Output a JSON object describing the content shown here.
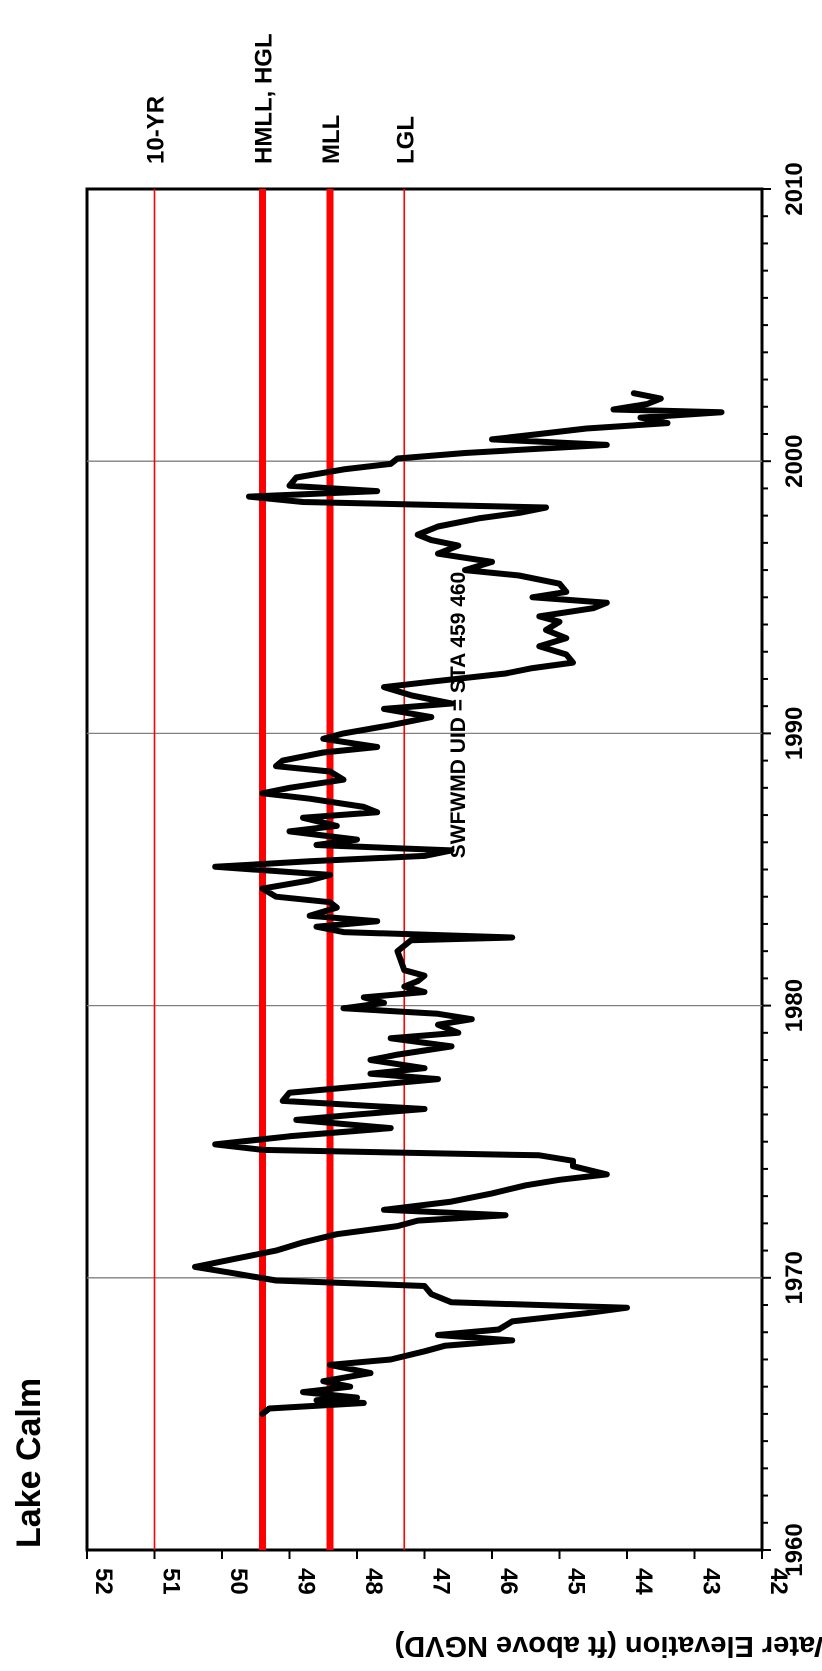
{
  "chart_data": {
    "type": "line",
    "title": "Lake Calm",
    "subtitle": "SWFWMD UID = STA 459 460",
    "xlabel": "",
    "ylabel": "Water Elevation (ft above NGVD)",
    "xlim": [
      1960,
      2010
    ],
    "ylim": [
      42,
      52
    ],
    "x_ticks": [
      1960,
      1970,
      1980,
      1990,
      2000,
      2010
    ],
    "y_ticks": [
      42,
      43,
      44,
      45,
      46,
      47,
      48,
      49,
      50,
      51,
      52
    ],
    "x_gridlines": [
      1970,
      1980,
      1990,
      2000
    ],
    "orientation": "rotated 90 degrees counter-clockwise",
    "reference_lines": [
      {
        "label": "10-YR",
        "value": 51.0,
        "color": "#ff0000",
        "weight": "thin"
      },
      {
        "label": "HMLL, HGL",
        "value": 49.4,
        "color": "#ff0000",
        "weight": "thick"
      },
      {
        "label": "MLL",
        "value": 48.4,
        "color": "#ff0000",
        "weight": "thick"
      },
      {
        "label": "LGL",
        "value": 47.3,
        "color": "#ff0000",
        "weight": "thin"
      }
    ],
    "series": [
      {
        "color": "#000000",
        "points": [
          [
            1965.0,
            49.4
          ],
          [
            1965.2,
            49.3
          ],
          [
            1965.4,
            47.9
          ],
          [
            1965.5,
            48.6
          ],
          [
            1965.6,
            48.0
          ],
          [
            1965.8,
            48.8
          ],
          [
            1966.0,
            48.1
          ],
          [
            1966.2,
            48.5
          ],
          [
            1966.5,
            47.8
          ],
          [
            1966.8,
            48.4
          ],
          [
            1967.0,
            47.5
          ],
          [
            1967.3,
            47.0
          ],
          [
            1967.5,
            46.7
          ],
          [
            1967.7,
            45.7
          ],
          [
            1967.9,
            46.8
          ],
          [
            1968.1,
            45.9
          ],
          [
            1968.4,
            45.7
          ],
          [
            1968.7,
            44.6
          ],
          [
            1968.9,
            44.0
          ],
          [
            1969.1,
            46.6
          ],
          [
            1969.4,
            46.9
          ],
          [
            1969.7,
            47.0
          ],
          [
            1969.9,
            49.2
          ],
          [
            1970.2,
            49.9
          ],
          [
            1970.4,
            50.4
          ],
          [
            1970.7,
            49.8
          ],
          [
            1971.0,
            49.2
          ],
          [
            1971.3,
            48.8
          ],
          [
            1971.6,
            48.3
          ],
          [
            1971.9,
            47.4
          ],
          [
            1972.1,
            47.1
          ],
          [
            1972.3,
            45.8
          ],
          [
            1972.5,
            47.6
          ],
          [
            1972.8,
            46.6
          ],
          [
            1973.1,
            46.0
          ],
          [
            1973.4,
            45.5
          ],
          [
            1973.6,
            45.0
          ],
          [
            1973.8,
            44.3
          ],
          [
            1974.1,
            44.8
          ],
          [
            1974.3,
            44.8
          ],
          [
            1974.5,
            45.3
          ],
          [
            1974.7,
            49.4
          ],
          [
            1974.9,
            50.1
          ],
          [
            1975.2,
            49.0
          ],
          [
            1975.5,
            47.5
          ],
          [
            1975.8,
            48.9
          ],
          [
            1976.0,
            48.0
          ],
          [
            1976.2,
            47.0
          ],
          [
            1976.5,
            49.1
          ],
          [
            1976.8,
            49.0
          ],
          [
            1977.0,
            48.1
          ],
          [
            1977.3,
            46.8
          ],
          [
            1977.5,
            47.8
          ],
          [
            1977.7,
            47.0
          ],
          [
            1978.0,
            47.8
          ],
          [
            1978.2,
            47.4
          ],
          [
            1978.5,
            46.6
          ],
          [
            1978.8,
            47.5
          ],
          [
            1979.0,
            46.5
          ],
          [
            1979.3,
            46.8
          ],
          [
            1979.5,
            46.3
          ],
          [
            1979.7,
            46.8
          ],
          [
            1979.9,
            48.2
          ],
          [
            1980.1,
            47.6
          ],
          [
            1980.3,
            47.9
          ],
          [
            1980.5,
            47.0
          ],
          [
            1980.7,
            47.3
          ],
          [
            1980.9,
            47.1
          ],
          [
            1981.1,
            47.0
          ],
          [
            1981.3,
            47.3
          ],
          [
            1982.0,
            47.4
          ],
          [
            1982.4,
            47.2
          ],
          [
            1982.5,
            45.7
          ],
          [
            1982.7,
            48.2
          ],
          [
            1982.9,
            48.6
          ],
          [
            1983.1,
            47.7
          ],
          [
            1983.3,
            48.7
          ],
          [
            1983.6,
            48.3
          ],
          [
            1983.8,
            48.4
          ],
          [
            1984.0,
            49.2
          ],
          [
            1984.3,
            49.4
          ],
          [
            1984.6,
            48.7
          ],
          [
            1984.8,
            48.4
          ],
          [
            1985.1,
            50.1
          ],
          [
            1985.3,
            48.7
          ],
          [
            1985.5,
            47.0
          ],
          [
            1985.7,
            46.6
          ],
          [
            1985.9,
            48.6
          ],
          [
            1986.1,
            48.0
          ],
          [
            1986.4,
            49.0
          ],
          [
            1986.6,
            48.3
          ],
          [
            1986.9,
            48.8
          ],
          [
            1987.1,
            47.7
          ],
          [
            1987.3,
            47.9
          ],
          [
            1987.6,
            48.7
          ],
          [
            1987.8,
            49.4
          ],
          [
            1988.0,
            49.0
          ],
          [
            1988.3,
            48.2
          ],
          [
            1988.6,
            48.4
          ],
          [
            1988.8,
            49.2
          ],
          [
            1989.0,
            49.1
          ],
          [
            1989.3,
            48.5
          ],
          [
            1989.5,
            47.7
          ],
          [
            1989.8,
            48.5
          ],
          [
            1990.0,
            48.2
          ],
          [
            1990.3,
            47.5
          ],
          [
            1990.6,
            46.9
          ],
          [
            1990.9,
            47.6
          ],
          [
            1991.1,
            46.6
          ],
          [
            1991.4,
            47.2
          ],
          [
            1991.7,
            47.6
          ],
          [
            1991.9,
            46.9
          ],
          [
            1992.2,
            45.8
          ],
          [
            1992.4,
            45.4
          ],
          [
            1992.6,
            44.8
          ],
          [
            1992.9,
            44.9
          ],
          [
            1993.2,
            45.3
          ],
          [
            1993.5,
            44.9
          ],
          [
            1993.8,
            45.2
          ],
          [
            1994.1,
            45.0
          ],
          [
            1994.3,
            45.3
          ],
          [
            1994.6,
            44.5
          ],
          [
            1994.8,
            44.3
          ],
          [
            1995.0,
            45.4
          ],
          [
            1995.2,
            44.9
          ],
          [
            1995.5,
            45.0
          ],
          [
            1995.8,
            45.6
          ],
          [
            1996.0,
            46.4
          ],
          [
            1996.3,
            46.0
          ],
          [
            1996.6,
            46.8
          ],
          [
            1996.9,
            46.5
          ],
          [
            1997.1,
            46.9
          ],
          [
            1997.3,
            47.1
          ],
          [
            1997.6,
            46.8
          ],
          [
            1997.9,
            46.2
          ],
          [
            1998.1,
            45.6
          ],
          [
            1998.3,
            45.2
          ],
          [
            1998.5,
            48.8
          ],
          [
            1998.7,
            49.6
          ],
          [
            1998.9,
            47.7
          ],
          [
            1999.1,
            49.0
          ],
          [
            1999.4,
            48.9
          ],
          [
            1999.7,
            48.2
          ],
          [
            1999.9,
            47.5
          ],
          [
            2000.1,
            47.4
          ],
          [
            2000.3,
            46.4
          ],
          [
            2000.6,
            44.3
          ],
          [
            2000.8,
            46.0
          ],
          [
            2001.0,
            45.3
          ],
          [
            2001.2,
            44.6
          ],
          [
            2001.4,
            43.4
          ],
          [
            2001.6,
            43.8
          ],
          [
            2001.8,
            42.6
          ],
          [
            2001.9,
            44.2
          ],
          [
            2002.1,
            43.7
          ],
          [
            2002.3,
            43.5
          ],
          [
            2002.5,
            43.9
          ]
        ]
      }
    ]
  }
}
